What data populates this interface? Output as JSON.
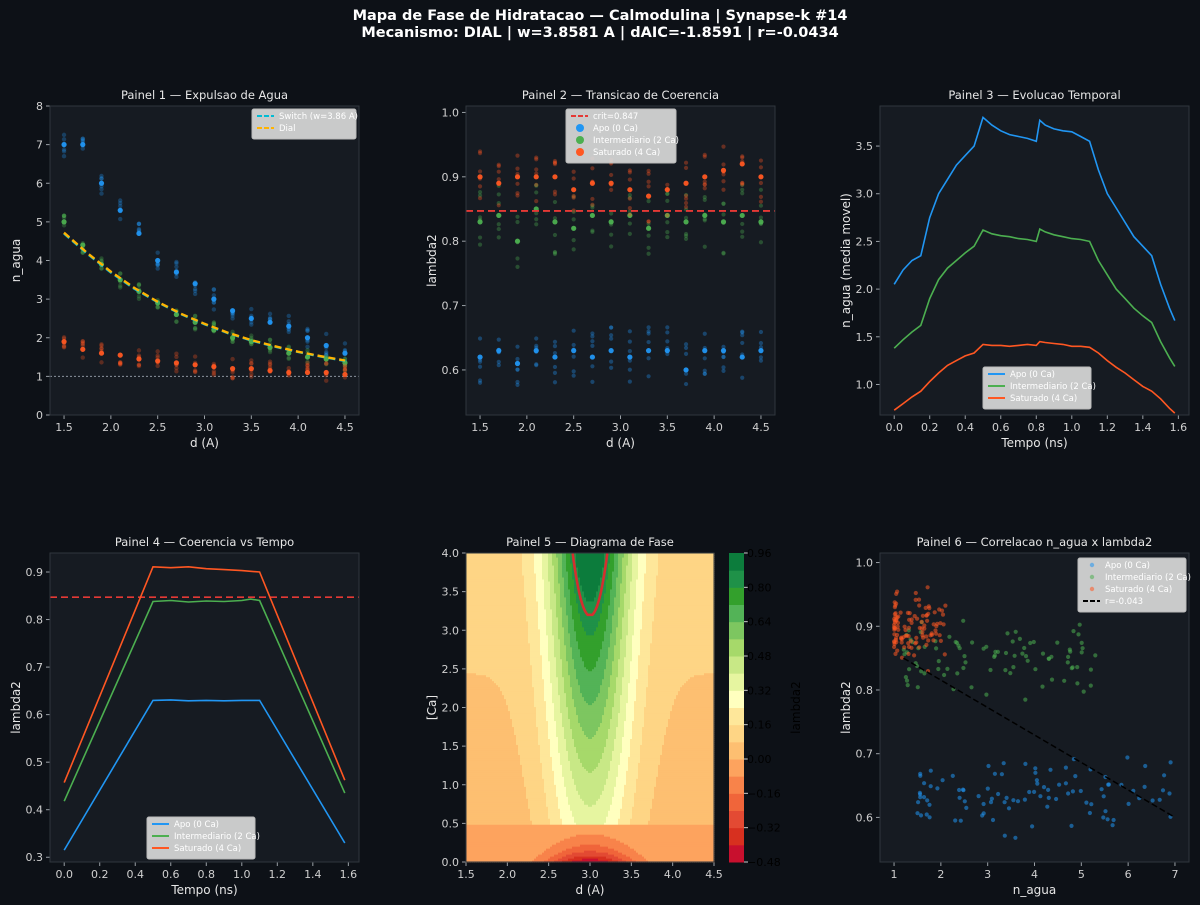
{
  "figure": {
    "title_line1": "Mapa de Fase de Hidratacao — Calmodulina | Synapse-k #14",
    "title_line2": "Mecanismo: DIAL | w=3.8581 A | dAIC=-1.8591 | r=-0.0434",
    "background": "#0d1117",
    "panel_bg": "#161b22"
  },
  "colors": {
    "apo": "#2196f3",
    "intermediario": "#4caf50",
    "saturado": "#ff5722",
    "switch": "#00bcd4",
    "dial": "#ffb300",
    "crit": "#e53935",
    "fit": "#000000"
  },
  "chart_data": [
    {
      "id": "p1",
      "type": "scatter",
      "title": "Painel 1 — Expulsao de Agua",
      "xlabel": "d (A)",
      "ylabel": "n_agua",
      "xlim": [
        1.35,
        4.65
      ],
      "ylim": [
        0,
        8
      ],
      "xticks": [
        1.5,
        2.0,
        2.5,
        3.0,
        3.5,
        4.0,
        4.5
      ],
      "xtick_labels": [
        "1.5",
        "2.0",
        "2.5",
        "3.0",
        "3.5",
        "4.0",
        "4.5"
      ],
      "yticks": [
        0,
        1,
        2,
        3,
        4,
        5,
        6,
        7,
        8
      ],
      "ytick_labels": [
        "0",
        "1",
        "2",
        "3",
        "4",
        "5",
        "6",
        "7",
        "8"
      ],
      "x": [
        1.5,
        1.7,
        1.9,
        2.1,
        2.3,
        2.5,
        2.7,
        2.9,
        3.1,
        3.3,
        3.5,
        3.7,
        3.9,
        4.1,
        4.3,
        4.5
      ],
      "series": [
        {
          "name": "Apo (0 Ca)",
          "color_key": "apo",
          "means": [
            7.0,
            7.0,
            6.0,
            5.3,
            4.7,
            4.0,
            3.7,
            3.4,
            3.0,
            2.7,
            2.5,
            2.4,
            2.3,
            2.0,
            1.8,
            1.6
          ],
          "spread": 0.3
        },
        {
          "name": "Intermediario (2 Ca)",
          "color_key": "intermediario",
          "means": [
            5.0,
            4.4,
            3.9,
            3.5,
            3.2,
            2.9,
            2.6,
            2.4,
            2.2,
            2.0,
            1.9,
            1.75,
            1.6,
            1.5,
            1.45,
            1.35
          ],
          "spread": 0.2
        },
        {
          "name": "Saturado (4 Ca)",
          "color_key": "saturado",
          "means": [
            1.9,
            1.7,
            1.6,
            1.55,
            1.45,
            1.4,
            1.35,
            1.3,
            1.25,
            1.2,
            1.2,
            1.15,
            1.1,
            1.1,
            1.1,
            1.05
          ],
          "spread": 0.25
        }
      ],
      "fit_lines": [
        {
          "name": "Switch (w=3.86 A)",
          "color_key": "switch",
          "x": [
            1.5,
            1.75,
            2.0,
            2.25,
            2.5,
            2.75,
            3.0,
            3.25,
            3.5,
            3.75,
            4.0,
            4.25,
            4.5
          ],
          "y": [
            4.7,
            4.17,
            3.69,
            3.27,
            2.92,
            2.61,
            2.35,
            2.12,
            1.93,
            1.77,
            1.63,
            1.51,
            1.4
          ]
        },
        {
          "name": "Dial",
          "color_key": "dial",
          "x": [
            1.5,
            1.75,
            2.0,
            2.25,
            2.5,
            2.75,
            3.0,
            3.25,
            3.5,
            3.75,
            4.0,
            4.25,
            4.5
          ],
          "y": [
            4.72,
            4.19,
            3.71,
            3.29,
            2.93,
            2.62,
            2.36,
            2.13,
            1.94,
            1.78,
            1.64,
            1.52,
            1.41
          ]
        }
      ],
      "hline": 1,
      "legend": [
        "Switch (w=3.86 A)",
        "Dial"
      ],
      "legend_loc": "top-right"
    },
    {
      "id": "p2",
      "type": "scatter",
      "title": "Painel 2 — Transicao de Coerencia",
      "xlabel": "d (A)",
      "ylabel": "lambda2",
      "xlim": [
        1.35,
        4.65
      ],
      "ylim": [
        0.53,
        1.01
      ],
      "xticks": [
        1.5,
        2.0,
        2.5,
        3.0,
        3.5,
        4.0,
        4.5
      ],
      "xtick_labels": [
        "1.5",
        "2.0",
        "2.5",
        "3.0",
        "3.5",
        "4.0",
        "4.5"
      ],
      "yticks": [
        0.6,
        0.7,
        0.8,
        0.9,
        1.0
      ],
      "ytick_labels": [
        "0.6",
        "0.7",
        "0.8",
        "0.9",
        "1.0"
      ],
      "x": [
        1.5,
        1.7,
        1.9,
        2.1,
        2.3,
        2.5,
        2.7,
        2.9,
        3.1,
        3.3,
        3.5,
        3.7,
        3.9,
        4.1,
        4.3,
        4.5
      ],
      "series": [
        {
          "name": "Apo (0 Ca)",
          "color_key": "apo",
          "means": [
            0.62,
            0.63,
            0.61,
            0.63,
            0.62,
            0.63,
            0.62,
            0.63,
            0.62,
            0.63,
            0.63,
            0.6,
            0.63,
            0.63,
            0.62,
            0.63
          ],
          "spread": 0.04
        },
        {
          "name": "Intermediario (2 Ca)",
          "color_key": "intermediario",
          "means": [
            0.83,
            0.84,
            0.8,
            0.85,
            0.83,
            0.82,
            0.84,
            0.83,
            0.84,
            0.82,
            0.84,
            0.83,
            0.84,
            0.83,
            0.84,
            0.83
          ],
          "spread": 0.05
        },
        {
          "name": "Saturado (4 Ca)",
          "color_key": "saturado",
          "means": [
            0.9,
            0.89,
            0.9,
            0.9,
            0.9,
            0.88,
            0.89,
            0.89,
            0.88,
            0.87,
            0.88,
            0.89,
            0.9,
            0.91,
            0.92,
            0.9
          ],
          "spread": 0.04
        }
      ],
      "hline": 0.847,
      "legend": [
        "crit=0.847",
        "Apo (0 Ca)",
        "Intermediario (2 Ca)",
        "Saturado (4 Ca)"
      ],
      "legend_loc": "top-center"
    },
    {
      "id": "p3",
      "type": "line",
      "title": "Painel 3 — Evolucao Temporal",
      "xlabel": "Tempo (ns)",
      "ylabel": "n_agua (media movel)",
      "xlim": [
        -0.08,
        1.66
      ],
      "ylim": [
        0.68,
        3.92
      ],
      "xticks": [
        0,
        0.2,
        0.4,
        0.6,
        0.8,
        1.0,
        1.2,
        1.4,
        1.6
      ],
      "xtick_labels": [
        "0.0",
        "0.2",
        "0.4",
        "0.6",
        "0.8",
        "1.0",
        "1.2",
        "1.4",
        "1.6"
      ],
      "yticks": [
        1.0,
        1.5,
        2.0,
        2.5,
        3.0,
        3.5
      ],
      "ytick_labels": [
        "1.0",
        "1.5",
        "2.0",
        "2.5",
        "3.0",
        "3.5"
      ],
      "series": [
        {
          "name": "Apo (0 Ca)",
          "color_key": "apo",
          "x": [
            0,
            0.05,
            0.1,
            0.15,
            0.2,
            0.25,
            0.3,
            0.35,
            0.4,
            0.45,
            0.5,
            0.55,
            0.6,
            0.65,
            0.7,
            0.75,
            0.8,
            0.82,
            0.85,
            0.9,
            0.95,
            1.0,
            1.05,
            1.1,
            1.15,
            1.2,
            1.25,
            1.3,
            1.35,
            1.4,
            1.45,
            1.5,
            1.55,
            1.58
          ],
          "y": [
            2.05,
            2.2,
            2.3,
            2.35,
            2.75,
            3.0,
            3.15,
            3.3,
            3.4,
            3.5,
            3.8,
            3.72,
            3.66,
            3.62,
            3.6,
            3.58,
            3.55,
            3.77,
            3.72,
            3.68,
            3.66,
            3.65,
            3.6,
            3.55,
            3.25,
            3.0,
            2.85,
            2.7,
            2.55,
            2.45,
            2.35,
            2.05,
            1.8,
            1.67
          ]
        },
        {
          "name": "Intermediario (2 Ca)",
          "color_key": "intermediario",
          "x": [
            0,
            0.05,
            0.1,
            0.15,
            0.2,
            0.25,
            0.3,
            0.35,
            0.4,
            0.45,
            0.5,
            0.55,
            0.6,
            0.65,
            0.7,
            0.75,
            0.8,
            0.82,
            0.85,
            0.9,
            0.95,
            1.0,
            1.05,
            1.1,
            1.15,
            1.2,
            1.25,
            1.3,
            1.35,
            1.4,
            1.45,
            1.5,
            1.55,
            1.58
          ],
          "y": [
            1.38,
            1.47,
            1.55,
            1.62,
            1.9,
            2.1,
            2.22,
            2.3,
            2.38,
            2.45,
            2.62,
            2.58,
            2.56,
            2.55,
            2.53,
            2.52,
            2.5,
            2.63,
            2.6,
            2.57,
            2.55,
            2.53,
            2.52,
            2.5,
            2.3,
            2.15,
            2.0,
            1.9,
            1.8,
            1.72,
            1.65,
            1.45,
            1.28,
            1.19
          ]
        },
        {
          "name": "Saturado (4 Ca)",
          "color_key": "saturado",
          "x": [
            0,
            0.05,
            0.1,
            0.15,
            0.2,
            0.25,
            0.3,
            0.35,
            0.4,
            0.45,
            0.5,
            0.55,
            0.6,
            0.65,
            0.7,
            0.75,
            0.8,
            0.82,
            0.85,
            0.9,
            0.95,
            1.0,
            1.05,
            1.1,
            1.15,
            1.2,
            1.25,
            1.3,
            1.35,
            1.4,
            1.45,
            1.5,
            1.55,
            1.58
          ],
          "y": [
            0.73,
            0.8,
            0.87,
            0.93,
            1.03,
            1.12,
            1.2,
            1.25,
            1.3,
            1.33,
            1.42,
            1.41,
            1.41,
            1.4,
            1.41,
            1.42,
            1.41,
            1.45,
            1.44,
            1.43,
            1.42,
            1.4,
            1.4,
            1.39,
            1.33,
            1.25,
            1.18,
            1.12,
            1.05,
            0.98,
            0.93,
            0.85,
            0.75,
            0.7
          ]
        }
      ],
      "legend": [
        "Apo (0 Ca)",
        "Intermediario (2 Ca)",
        "Saturado (4 Ca)"
      ],
      "legend_loc": "bottom-center"
    },
    {
      "id": "p4",
      "type": "line",
      "title": "Painel 4 — Coerencia vs Tempo",
      "xlabel": "Tempo (ns)",
      "ylabel": "lambda2",
      "xlim": [
        -0.08,
        1.66
      ],
      "ylim": [
        0.29,
        0.94
      ],
      "xticks": [
        0,
        0.2,
        0.4,
        0.6,
        0.8,
        1.0,
        1.2,
        1.4,
        1.6
      ],
      "xtick_labels": [
        "0.0",
        "0.2",
        "0.4",
        "0.6",
        "0.8",
        "1.0",
        "1.2",
        "1.4",
        "1.6"
      ],
      "yticks": [
        0.3,
        0.4,
        0.5,
        0.6,
        0.7,
        0.8,
        0.9
      ],
      "ytick_labels": [
        "0.3",
        "0.4",
        "0.5",
        "0.6",
        "0.7",
        "0.8",
        "0.9"
      ],
      "series": [
        {
          "name": "Apo (0 Ca)",
          "color_key": "apo",
          "x": [
            0,
            0.5,
            0.6,
            0.7,
            0.8,
            0.9,
            1.0,
            1.1,
            1.58
          ],
          "y": [
            0.315,
            0.63,
            0.631,
            0.629,
            0.63,
            0.629,
            0.63,
            0.63,
            0.33
          ]
        },
        {
          "name": "Intermediario (2 Ca)",
          "color_key": "intermediario",
          "x": [
            0,
            0.5,
            0.6,
            0.7,
            0.8,
            0.9,
            1.0,
            1.05,
            1.1,
            1.58
          ],
          "y": [
            0.418,
            0.838,
            0.84,
            0.837,
            0.839,
            0.838,
            0.84,
            0.843,
            0.84,
            0.435
          ]
        },
        {
          "name": "Saturado (4 Ca)",
          "color_key": "saturado",
          "x": [
            0,
            0.5,
            0.6,
            0.7,
            0.8,
            0.9,
            1.0,
            1.1,
            1.58
          ],
          "y": [
            0.457,
            0.911,
            0.909,
            0.911,
            0.907,
            0.905,
            0.903,
            0.9,
            0.462
          ]
        }
      ],
      "hline": 0.847,
      "legend": [
        "Apo (0 Ca)",
        "Intermediario (2 Ca)",
        "Saturado (4 Ca)"
      ],
      "legend_loc": "bottom-center"
    },
    {
      "id": "p5",
      "type": "heatmap",
      "title": "Painel 5 — Diagrama de Fase",
      "xlabel": "d (A)",
      "ylabel": "[Ca]",
      "xlim": [
        1.5,
        4.5
      ],
      "ylim": [
        0,
        4
      ],
      "xticks": [
        1.5,
        2.0,
        2.5,
        3.0,
        3.5,
        4.0,
        4.5
      ],
      "xtick_labels": [
        "1.5",
        "2.0",
        "2.5",
        "3.0",
        "3.5",
        "4.0",
        "4.5"
      ],
      "yticks": [
        0,
        0.5,
        1.0,
        1.5,
        2.0,
        2.5,
        3.0,
        3.5,
        4.0
      ],
      "ytick_labels": [
        "0.0",
        "0.5",
        "1.0",
        "1.5",
        "2.0",
        "2.5",
        "3.0",
        "3.5",
        "4.0"
      ],
      "colorbar_label": "lambda2",
      "colorbar_range": [
        -0.48,
        0.96
      ],
      "colorbar_ticks": [
        -0.48,
        -0.32,
        -0.16,
        0.0,
        0.16,
        0.32,
        0.48,
        0.64,
        0.8,
        0.96
      ],
      "colorbar_tick_labels": [
        "−0.48",
        "−0.32",
        "−0.16",
        "0.00",
        "0.16",
        "0.32",
        "0.48",
        "0.64",
        "0.80",
        "0.96"
      ],
      "contour_level": 0.847,
      "level_colors": [
        "#c8102e",
        "#d7301f",
        "#e34a33",
        "#f0653a",
        "#f8834a",
        "#fda35e",
        "#fdbf71",
        "#fed585",
        "#fee79a",
        "#ffffbf",
        "#e6f5a0",
        "#c8e886",
        "#a6d96a",
        "#7dc660",
        "#53b357",
        "#33a02c",
        "#1f9148",
        "#0c7c3c"
      ]
    },
    {
      "id": "p6",
      "type": "scatter",
      "title": "Painel 6 — Correlacao n_agua x lambda2",
      "xlabel": "n_agua",
      "ylabel": "lambda2",
      "xlim": [
        0.7,
        7.3
      ],
      "ylim": [
        0.53,
        1.015
      ],
      "xticks": [
        1,
        2,
        3,
        4,
        5,
        6,
        7
      ],
      "xtick_labels": [
        "1",
        "2",
        "3",
        "4",
        "5",
        "6",
        "7"
      ],
      "yticks": [
        0.6,
        0.7,
        0.8,
        0.9,
        1.0
      ],
      "ytick_labels": [
        "0.6",
        "0.7",
        "0.8",
        "0.9",
        "1.0"
      ],
      "clusters": [
        {
          "name": "Apo (0 Ca)",
          "color_key": "apo",
          "n": 100,
          "x_range": [
            1.5,
            7.0
          ],
          "y_center": 0.635,
          "y_spread": 0.04
        },
        {
          "name": "Intermediario (2 Ca)",
          "color_key": "intermediario",
          "n": 90,
          "x_range": [
            1.2,
            5.3
          ],
          "y_center": 0.85,
          "y_spread": 0.045
        },
        {
          "name": "Saturado (4 Ca)",
          "color_key": "saturado",
          "n": 110,
          "x_range": [
            1.0,
            2.1
          ],
          "y_center": 0.9,
          "y_spread": 0.04
        }
      ],
      "fit_line": {
        "name": "r=-0.043",
        "x": [
          1.2,
          7.0
        ],
        "y": [
          0.85,
          0.6
        ]
      },
      "legend": [
        "Apo (0 Ca)",
        "Intermediario (2 Ca)",
        "Saturado (4 Ca)",
        "r=-0.043"
      ],
      "legend_loc": "top-right"
    }
  ]
}
